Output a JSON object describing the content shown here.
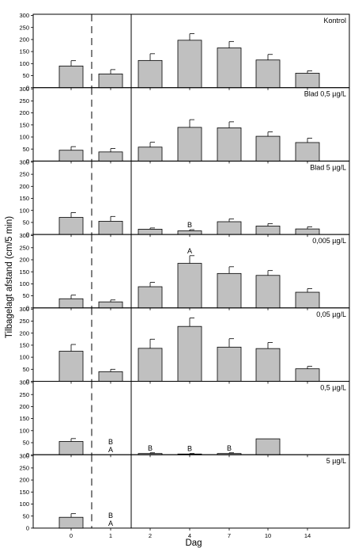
{
  "chart_data": {
    "type": "bar",
    "categories": [
      "0",
      "1",
      "2",
      "4",
      "7",
      "10",
      "14"
    ],
    "xlabel": "Dag",
    "ylabel": "Tilbagelagt afstand (cm/5 min)",
    "ylim": [
      0,
      300
    ],
    "yticks": [
      0,
      50,
      100,
      150,
      200,
      250,
      300
    ],
    "grid": false,
    "bar_color": "#c0c0c0",
    "panels": [
      {
        "label": "Kontrol",
        "values": [
          90,
          57,
          113,
          197,
          165,
          115,
          60
        ],
        "errors": [
          22,
          18,
          28,
          27,
          27,
          23,
          10
        ],
        "annotations": []
      },
      {
        "label": "Blad 0,5 µg/L",
        "values": [
          45,
          38,
          58,
          140,
          138,
          103,
          77
        ],
        "errors": [
          15,
          14,
          20,
          32,
          25,
          18,
          18
        ],
        "annotations": []
      },
      {
        "label": "Blad 5 µg/L",
        "values": [
          71,
          55,
          22,
          15,
          53,
          35,
          23
        ],
        "errors": [
          20,
          20,
          5,
          5,
          12,
          10,
          9
        ],
        "annotations": [
          {
            "category": "4",
            "text": "B"
          }
        ]
      },
      {
        "label": "0,005 µg/L",
        "values": [
          38,
          25,
          88,
          185,
          143,
          135,
          65
        ],
        "errors": [
          15,
          8,
          18,
          32,
          28,
          20,
          15
        ],
        "annotations": [
          {
            "category": "4",
            "text": "A"
          }
        ]
      },
      {
        "label": "0,05 µg/L",
        "values": [
          125,
          40,
          137,
          228,
          142,
          136,
          52
        ],
        "errors": [
          28,
          10,
          38,
          35,
          35,
          25,
          10
        ],
        "annotations": []
      },
      {
        "label": "0,5 µg/L",
        "values": [
          55,
          0,
          5,
          3,
          5,
          66,
          0
        ],
        "errors": [
          12,
          0,
          3,
          2,
          3,
          0,
          0
        ],
        "annotations": [
          {
            "category": "1",
            "text": "B"
          },
          {
            "category": "1",
            "text": "A"
          },
          {
            "category": "2",
            "text": "B"
          },
          {
            "category": "4",
            "text": "B"
          },
          {
            "category": "7",
            "text": "B"
          }
        ]
      },
      {
        "label": "5 µg/L",
        "values": [
          45,
          0,
          0,
          0,
          0,
          0,
          0
        ],
        "errors": [
          15,
          0,
          0,
          0,
          0,
          0,
          0
        ],
        "annotations": [
          {
            "category": "1",
            "text": "B"
          },
          {
            "category": "1",
            "text": "A"
          }
        ]
      }
    ]
  }
}
